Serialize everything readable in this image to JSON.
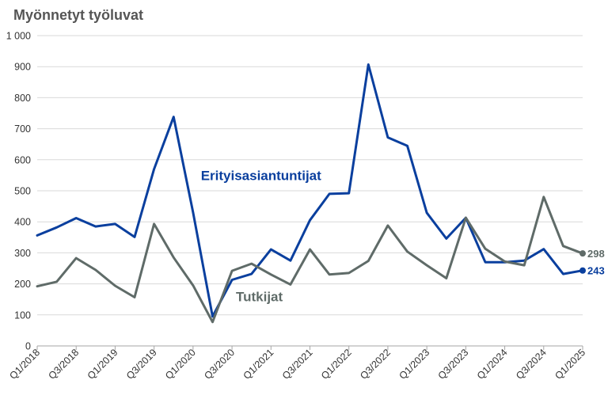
{
  "chart_data": {
    "type": "line",
    "title": "Myönnetyt työluvat",
    "xlabel": "",
    "ylabel": "",
    "ylim": [
      0,
      1000
    ],
    "yticks": [
      0,
      100,
      200,
      300,
      400,
      500,
      600,
      700,
      800,
      900,
      1000
    ],
    "ytick_labels": [
      "0",
      "100",
      "200",
      "300",
      "400",
      "500",
      "600",
      "700",
      "800",
      "900",
      "1 000"
    ],
    "grid": "horizontal",
    "x": [
      "Q1/2018",
      "Q2/2018",
      "Q3/2018",
      "Q4/2018",
      "Q1/2019",
      "Q2/2019",
      "Q3/2019",
      "Q4/2019",
      "Q1/2020",
      "Q2/2020",
      "Q3/2020",
      "Q4/2020",
      "Q1/2021",
      "Q2/2021",
      "Q3/2021",
      "Q4/2021",
      "Q1/2022",
      "Q2/2022",
      "Q3/2022",
      "Q4/2022",
      "Q1/2023",
      "Q2/2023",
      "Q3/2023",
      "Q4/2023",
      "Q1/2024",
      "Q2/2024",
      "Q3/2024",
      "Q4/2024",
      "Q1/2025"
    ],
    "xtick_labels": [
      "Q1/2018",
      "Q3/2018",
      "Q1/2019",
      "Q3/2019",
      "Q1/2020",
      "Q3/2020",
      "Q1/2021",
      "Q3/2021",
      "Q1/2022",
      "Q3/2022",
      "Q1/2023",
      "Q3/2023",
      "Q1/2024",
      "Q3/2024",
      "Q1/2025"
    ],
    "series": [
      {
        "name": "Erityisasiantuntijat",
        "color": "#0a3f9e",
        "end_label": "243",
        "values": [
          356,
          382,
          412,
          385,
          393,
          351,
          570,
          738,
          430,
          95,
          213,
          232,
          311,
          275,
          405,
          490,
          492,
          907,
          672,
          645,
          429,
          346,
          413,
          270,
          270,
          275,
          312,
          232,
          243
        ]
      },
      {
        "name": "Tutkijat",
        "color": "#5f6b68",
        "end_label": "298",
        "values": [
          192,
          207,
          283,
          245,
          194,
          157,
          393,
          285,
          195,
          77,
          242,
          265,
          230,
          198,
          311,
          230,
          235,
          274,
          388,
          304,
          260,
          218,
          413,
          313,
          272,
          260,
          480,
          322,
          298
        ]
      }
    ]
  }
}
